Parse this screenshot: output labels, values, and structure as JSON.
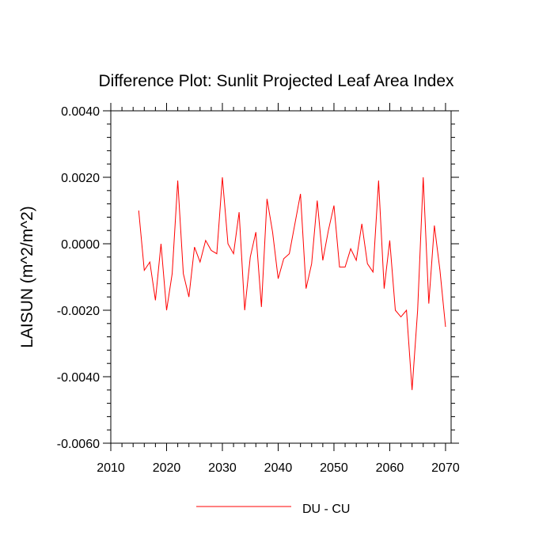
{
  "chart_data": {
    "type": "line",
    "title": "Difference Plot: Sunlit Projected Leaf Area Index",
    "xlabel": "",
    "ylabel": "LAISUN  (m^2/m^2)",
    "xlim": [
      2010,
      2071
    ],
    "ylim": [
      -0.006,
      0.004
    ],
    "xticks": [
      2010,
      2020,
      2030,
      2040,
      2050,
      2060,
      2070
    ],
    "xtick_labels": [
      "2010",
      "2020",
      "2030",
      "2040",
      "2050",
      "2060",
      "2070"
    ],
    "yticks": [
      -0.006,
      -0.004,
      -0.002,
      0.0,
      0.002,
      0.004
    ],
    "ytick_labels": [
      "-0.0060",
      "-0.0040",
      "-0.0020",
      "0.0000",
      "0.0020",
      "0.0040"
    ],
    "series": [
      {
        "name": "DU - CU",
        "color": "#ff0000",
        "x": [
          2015,
          2016,
          2017,
          2018,
          2019,
          2020,
          2021,
          2022,
          2023,
          2024,
          2025,
          2026,
          2027,
          2028,
          2029,
          2030,
          2031,
          2032,
          2033,
          2034,
          2035,
          2036,
          2037,
          2038,
          2039,
          2040,
          2041,
          2042,
          2043,
          2044,
          2045,
          2046,
          2047,
          2048,
          2049,
          2050,
          2051,
          2052,
          2053,
          2054,
          2055,
          2056,
          2057,
          2058,
          2059,
          2060,
          2061,
          2062,
          2063,
          2064,
          2065,
          2066,
          2067,
          2068,
          2069,
          2070
        ],
        "values": [
          0.001,
          -0.0008,
          -0.00055,
          -0.0017,
          0.0,
          -0.002,
          -0.0009,
          0.0019,
          -0.0009,
          -0.0016,
          -0.0001,
          -0.00055,
          0.0001,
          -0.0002,
          -0.0003,
          0.002,
          0.0,
          -0.0003,
          0.00095,
          -0.002,
          -0.0004,
          0.00035,
          -0.0019,
          0.00135,
          0.00035,
          -0.00105,
          -0.00045,
          -0.0003,
          0.0006,
          0.0015,
          -0.00135,
          -0.0006,
          0.0013,
          -0.0005,
          0.0004,
          0.00115,
          -0.0007,
          -0.0007,
          -0.00015,
          -0.0005,
          0.0006,
          -0.0006,
          -0.00085,
          0.0019,
          -0.00135,
          0.0001,
          -0.002,
          -0.0022,
          -0.002,
          -0.0044,
          -0.002,
          0.002,
          -0.0018,
          0.00055,
          -0.0008,
          -0.0025
        ]
      }
    ],
    "legend": {
      "position": "bottom-center",
      "label": "DU - CU"
    },
    "grid": false
  }
}
